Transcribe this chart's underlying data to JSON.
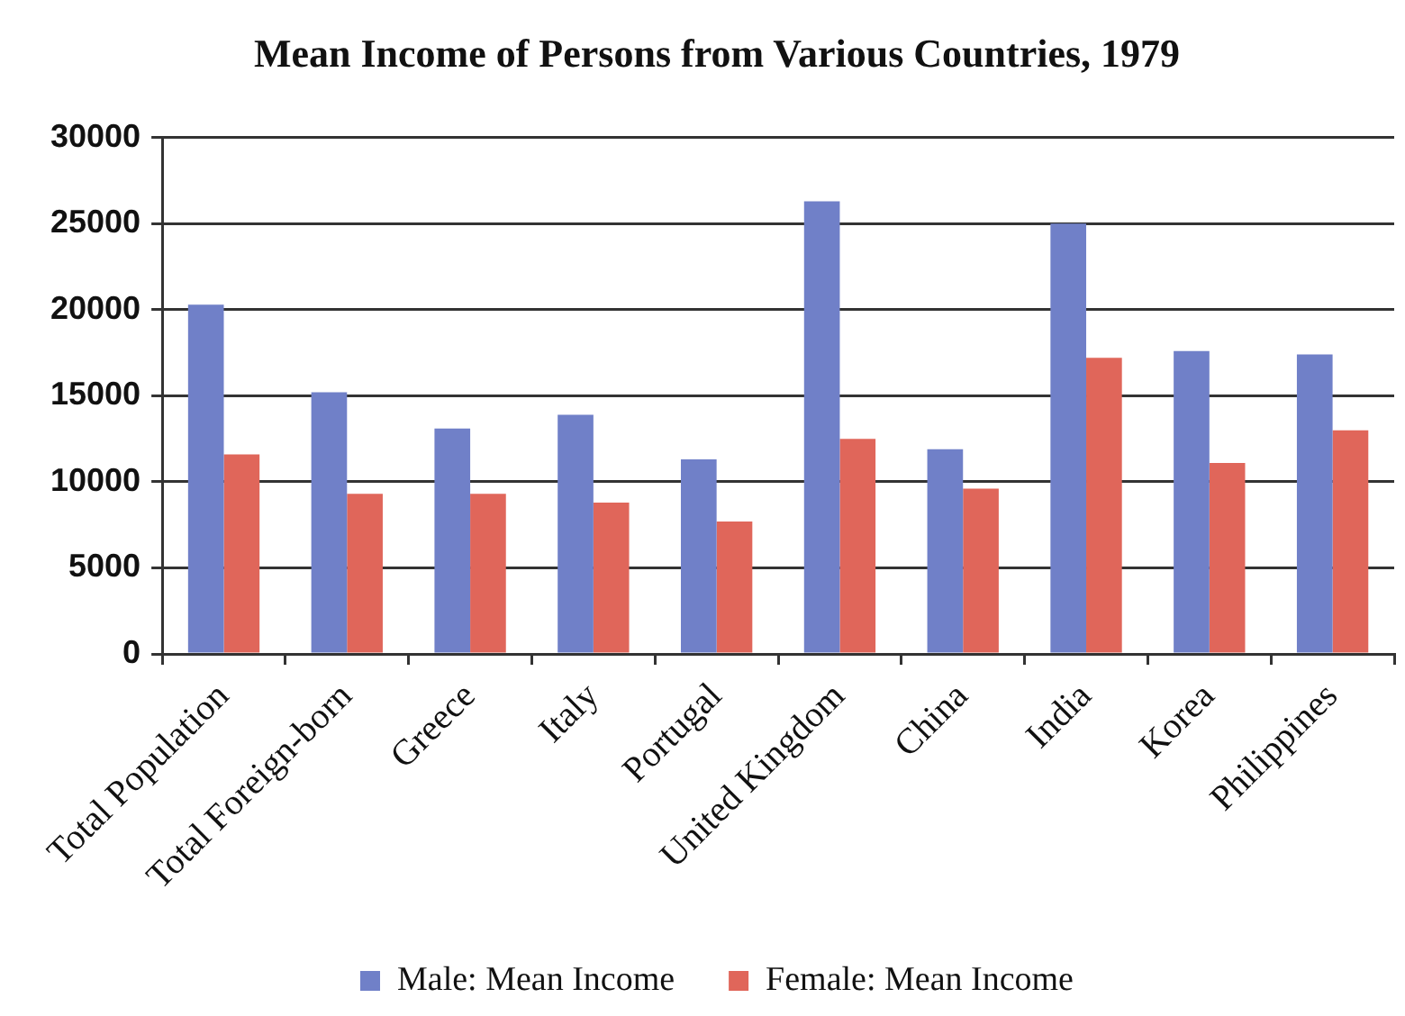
{
  "chart_data": {
    "type": "bar",
    "title": "Mean Income of Persons from Various Countries, 1979",
    "categories": [
      "Total Population",
      "Total Foreign-born",
      "Greece",
      "Italy",
      "Portugal",
      "United Kingdom",
      "China",
      "India",
      "Korea",
      "Philippines"
    ],
    "series": [
      {
        "name": "Male: Mean Income",
        "color": "#7080c8",
        "values": [
          20300,
          15200,
          13100,
          13900,
          11300,
          26300,
          11900,
          25000,
          17600,
          17400
        ]
      },
      {
        "name": "Female: Mean Income",
        "color": "#e0665a",
        "values": [
          11600,
          9300,
          9300,
          8800,
          7700,
          12500,
          9600,
          17200,
          11100,
          13000
        ]
      }
    ],
    "ylim": [
      0,
      30000
    ],
    "yticks": [
      0,
      5000,
      10000,
      15000,
      20000,
      25000,
      30000
    ],
    "grid": "y",
    "legend": "bottom"
  }
}
